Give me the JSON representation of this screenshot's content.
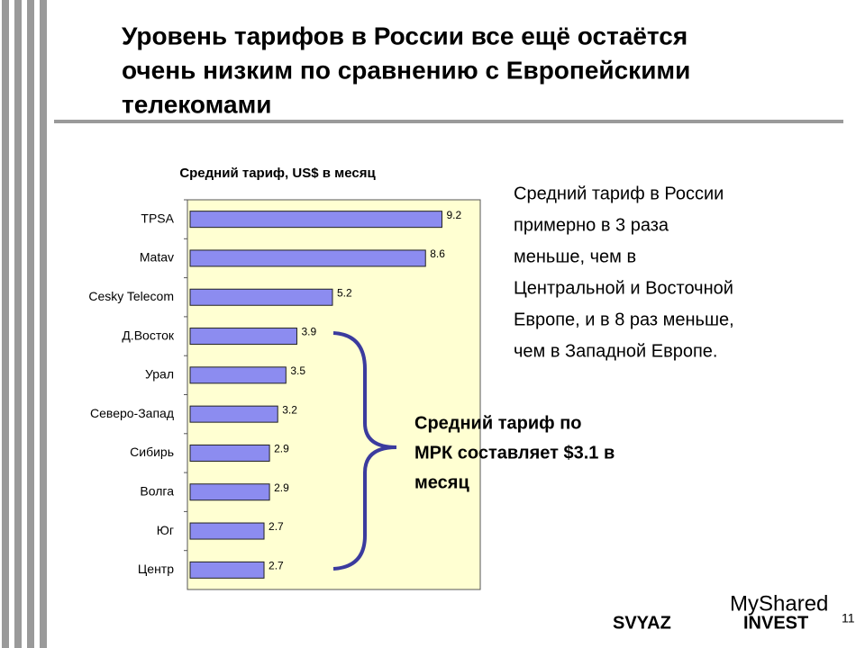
{
  "slide_title": [
    "Уровень тарифов в России все ещё остаётся",
    "очень низким по сравнению с Европейскими",
    "телекомами"
  ],
  "chart_data": {
    "type": "hbar",
    "title": "Средний тариф, US$ в месяц",
    "categories": [
      "TPSA",
      "Matav",
      "Cesky Telecom",
      "Д.Восток",
      "Урал",
      "Северо-Запад",
      "Сибирь",
      "Волга",
      "Юг",
      "Центр"
    ],
    "values": [
      9.2,
      8.6,
      5.2,
      3.9,
      3.5,
      3.2,
      2.9,
      2.9,
      2.7,
      2.7
    ],
    "color": "#8c8cf0",
    "xlim": [
      0,
      10.6
    ]
  },
  "note": [
    "Средний тариф в России",
    "примерно в 3 раза",
    "меньше, чем в",
    "Центральной и Восточной",
    "Европе, и в 8 раз меньше,",
    "чем в Западной Европе."
  ],
  "callout": [
    "Средний тариф по",
    "МРК составляет $3.1 в",
    "месяц"
  ],
  "logo": {
    "left": "SVYAZ",
    "right": "INVEST"
  },
  "watermark": "MyShared",
  "page_number": "11"
}
